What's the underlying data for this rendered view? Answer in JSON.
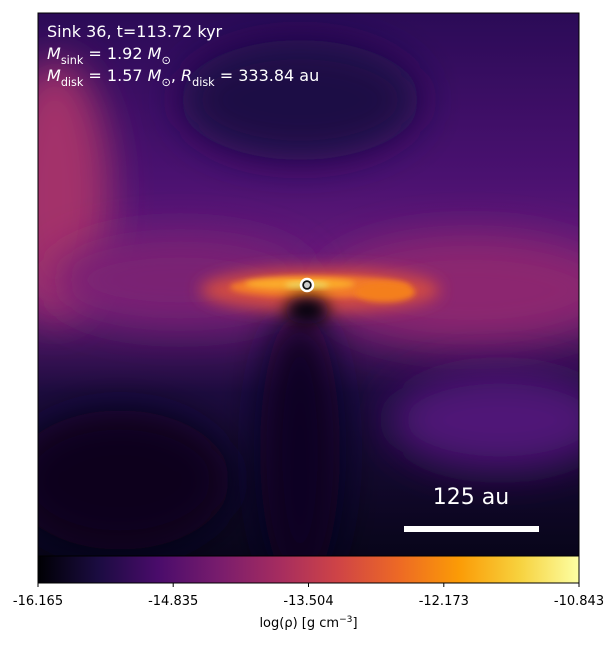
{
  "chart_data": {
    "type": "image",
    "annotations": [
      [
        {
          "text": "Sink 36, t=113.72 kyr"
        }
      ],
      [
        {
          "text": "M",
          "italic": true
        },
        {
          "text": "sink",
          "script": "sub"
        },
        {
          "text": " = 1.92 "
        },
        {
          "text": "M",
          "italic": true
        },
        {
          "text": "⊙",
          "script": "sub"
        }
      ],
      [
        {
          "text": "M",
          "italic": true
        },
        {
          "text": "disk",
          "script": "sub"
        },
        {
          "text": " = 1.57 "
        },
        {
          "text": "M",
          "italic": true
        },
        {
          "text": "⊙",
          "script": "sub"
        },
        {
          "text": ", "
        },
        {
          "text": "R",
          "italic": true
        },
        {
          "text": "disk",
          "script": "sub"
        },
        {
          "text": " = 333.84 au"
        }
      ]
    ],
    "scale_bar_label": "125 au",
    "colormap": "inferno",
    "clim": [
      -16.165,
      -10.843
    ],
    "cticks": [
      -16.165,
      -14.835,
      -13.504,
      -12.173,
      -10.843
    ],
    "colorbar_label": [
      {
        "text": "log(ρ) [g cm"
      },
      {
        "text": "−3",
        "script": "super"
      },
      {
        "text": "]"
      }
    ]
  }
}
